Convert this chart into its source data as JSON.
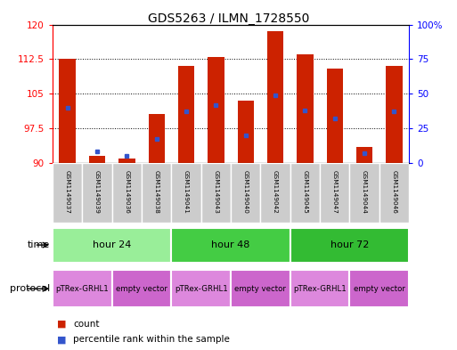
{
  "title": "GDS5263 / ILMN_1728550",
  "samples": [
    "GSM1149037",
    "GSM1149039",
    "GSM1149036",
    "GSM1149038",
    "GSM1149041",
    "GSM1149043",
    "GSM1149040",
    "GSM1149042",
    "GSM1149045",
    "GSM1149047",
    "GSM1149044",
    "GSM1149046"
  ],
  "counts": [
    112.5,
    91.5,
    91.0,
    100.5,
    111.0,
    113.0,
    103.5,
    118.5,
    113.5,
    110.5,
    93.5,
    111.0
  ],
  "percentile_ranks": [
    40,
    8,
    5,
    17,
    37,
    42,
    20,
    49,
    38,
    32,
    7,
    37
  ],
  "ylim_left": [
    90,
    120
  ],
  "ylim_right": [
    0,
    100
  ],
  "yticks_left": [
    90,
    97.5,
    105,
    112.5,
    120
  ],
  "yticks_right": [
    0,
    25,
    50,
    75,
    100
  ],
  "bar_color": "#cc2200",
  "dot_color": "#3355cc",
  "time_groups": [
    {
      "label": "hour 24",
      "start": 0,
      "end": 3,
      "color": "#99ee99"
    },
    {
      "label": "hour 48",
      "start": 4,
      "end": 7,
      "color": "#44cc44"
    },
    {
      "label": "hour 72",
      "start": 8,
      "end": 11,
      "color": "#33bb33"
    }
  ],
  "protocol_groups": [
    {
      "label": "pTRex-GRHL1",
      "start": 0,
      "end": 1,
      "color": "#dd88dd"
    },
    {
      "label": "empty vector",
      "start": 2,
      "end": 3,
      "color": "#cc66cc"
    },
    {
      "label": "pTRex-GRHL1",
      "start": 4,
      "end": 5,
      "color": "#dd88dd"
    },
    {
      "label": "empty vector",
      "start": 6,
      "end": 7,
      "color": "#cc66cc"
    },
    {
      "label": "pTRex-GRHL1",
      "start": 8,
      "end": 9,
      "color": "#dd88dd"
    },
    {
      "label": "empty vector",
      "start": 10,
      "end": 11,
      "color": "#cc66cc"
    }
  ]
}
